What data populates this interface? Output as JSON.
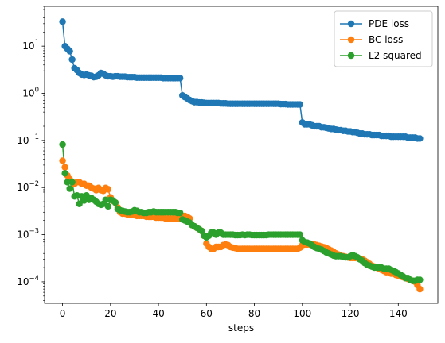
{
  "chart_data": {
    "type": "line",
    "title": "",
    "xlabel": "steps",
    "ylabel": "",
    "yscale": "log",
    "xlim": [
      -7.5,
      156.5
    ],
    "ylim": [
      3.5e-05,
      70
    ],
    "grid": false,
    "legend_position": "top-right",
    "x_ticks": [
      0,
      20,
      40,
      60,
      80,
      100,
      120,
      140
    ],
    "x_tick_labels": [
      "0",
      "20",
      "40",
      "60",
      "80",
      "100",
      "120",
      "140"
    ],
    "y_ticks": [
      {
        "value": 0.0001,
        "base": "10",
        "exp": "−4"
      },
      {
        "value": 0.001,
        "base": "10",
        "exp": "−3"
      },
      {
        "value": 0.01,
        "base": "10",
        "exp": "−2"
      },
      {
        "value": 0.1,
        "base": "10",
        "exp": "−1"
      },
      {
        "value": 1,
        "base": "10",
        "exp": "0"
      },
      {
        "value": 10,
        "base": "10",
        "exp": "1"
      }
    ],
    "x": [
      0,
      1,
      2,
      3,
      4,
      5,
      6,
      7,
      8,
      9,
      10,
      11,
      12,
      13,
      14,
      15,
      16,
      17,
      18,
      19,
      20,
      21,
      22,
      23,
      24,
      25,
      26,
      27,
      28,
      29,
      30,
      31,
      32,
      33,
      34,
      35,
      36,
      37,
      38,
      39,
      40,
      41,
      42,
      43,
      44,
      45,
      46,
      47,
      48,
      49,
      50,
      51,
      52,
      53,
      54,
      55,
      56,
      57,
      58,
      59,
      60,
      61,
      62,
      63,
      64,
      65,
      66,
      67,
      68,
      69,
      70,
      71,
      72,
      73,
      74,
      75,
      76,
      77,
      78,
      79,
      80,
      81,
      82,
      83,
      84,
      85,
      86,
      87,
      88,
      89,
      90,
      91,
      92,
      93,
      94,
      95,
      96,
      97,
      98,
      99,
      100,
      101,
      102,
      103,
      104,
      105,
      106,
      107,
      108,
      109,
      110,
      111,
      112,
      113,
      114,
      115,
      116,
      117,
      118,
      119,
      120,
      121,
      122,
      123,
      124,
      125,
      126,
      127,
      128,
      129,
      130,
      131,
      132,
      133,
      134,
      135,
      136,
      137,
      138,
      139,
      140,
      141,
      142,
      143,
      144,
      145,
      146,
      147,
      148,
      149
    ],
    "series": [
      {
        "name": "PDE loss",
        "color": "#1f77b4",
        "values": [
          33,
          10,
          8.8,
          7.8,
          5.2,
          3.4,
          3.1,
          2.7,
          2.5,
          2.45,
          2.5,
          2.4,
          2.35,
          2.2,
          2.25,
          2.4,
          2.7,
          2.6,
          2.4,
          2.3,
          2.3,
          2.25,
          2.3,
          2.3,
          2.25,
          2.25,
          2.25,
          2.2,
          2.2,
          2.2,
          2.2,
          2.15,
          2.15,
          2.15,
          2.15,
          2.15,
          2.15,
          2.15,
          2.15,
          2.15,
          2.15,
          2.15,
          2.1,
          2.1,
          2.1,
          2.1,
          2.1,
          2.1,
          2.1,
          2.1,
          0.9,
          0.83,
          0.78,
          0.72,
          0.68,
          0.65,
          0.65,
          0.64,
          0.64,
          0.63,
          0.62,
          0.62,
          0.62,
          0.62,
          0.62,
          0.62,
          0.61,
          0.61,
          0.61,
          0.6,
          0.6,
          0.6,
          0.6,
          0.6,
          0.6,
          0.6,
          0.6,
          0.6,
          0.6,
          0.6,
          0.6,
          0.6,
          0.6,
          0.6,
          0.6,
          0.6,
          0.6,
          0.6,
          0.6,
          0.6,
          0.6,
          0.59,
          0.59,
          0.59,
          0.58,
          0.58,
          0.58,
          0.58,
          0.58,
          0.58,
          0.24,
          0.22,
          0.22,
          0.22,
          0.21,
          0.2,
          0.2,
          0.2,
          0.19,
          0.19,
          0.185,
          0.18,
          0.175,
          0.175,
          0.17,
          0.165,
          0.165,
          0.16,
          0.16,
          0.155,
          0.155,
          0.15,
          0.15,
          0.145,
          0.14,
          0.14,
          0.135,
          0.135,
          0.135,
          0.13,
          0.13,
          0.13,
          0.13,
          0.125,
          0.125,
          0.125,
          0.125,
          0.12,
          0.12,
          0.12,
          0.12,
          0.12,
          0.12,
          0.12,
          0.115,
          0.115,
          0.115,
          0.115,
          0.11,
          0.11
        ]
      },
      {
        "name": "BC loss",
        "color": "#ff7f0e",
        "values": [
          0.037,
          0.027,
          0.018,
          0.015,
          0.013,
          0.012,
          0.013,
          0.013,
          0.012,
          0.012,
          0.011,
          0.011,
          0.01,
          0.0095,
          0.0088,
          0.0098,
          0.0088,
          0.0085,
          0.0098,
          0.0092,
          0.0062,
          0.0052,
          0.0048,
          0.0038,
          0.003,
          0.0028,
          0.0028,
          0.0027,
          0.0027,
          0.0026,
          0.0026,
          0.0025,
          0.0025,
          0.0025,
          0.0025,
          0.0024,
          0.0024,
          0.0024,
          0.0024,
          0.0023,
          0.0023,
          0.0023,
          0.0023,
          0.0022,
          0.0022,
          0.0022,
          0.0022,
          0.0022,
          0.0022,
          0.0022,
          0.0022,
          0.0025,
          0.0024,
          0.0022,
          0.0016,
          0.0015,
          0.0014,
          0.0013,
          0.0012,
          0.00095,
          0.00065,
          0.00055,
          0.0005,
          0.0005,
          0.00055,
          0.00055,
          0.00055,
          0.0006,
          0.00062,
          0.0006,
          0.00055,
          0.00053,
          0.00052,
          0.0005,
          0.0005,
          0.0005,
          0.0005,
          0.0005,
          0.0005,
          0.0005,
          0.0005,
          0.0005,
          0.0005,
          0.0005,
          0.0005,
          0.0005,
          0.0005,
          0.0005,
          0.0005,
          0.0005,
          0.0005,
          0.0005,
          0.0005,
          0.0005,
          0.0005,
          0.0005,
          0.0005,
          0.0005,
          0.0005,
          0.00053,
          0.0006,
          0.00062,
          0.00062,
          0.00062,
          0.00062,
          0.00062,
          0.0006,
          0.00058,
          0.00056,
          0.00054,
          0.00052,
          0.00049,
          0.00046,
          0.00043,
          0.0004,
          0.00038,
          0.00036,
          0.00035,
          0.00034,
          0.00033,
          0.00032,
          0.00032,
          0.00032,
          0.00032,
          0.00031,
          0.0003,
          0.00028,
          0.00026,
          0.00024,
          0.00022,
          0.00021,
          0.0002,
          0.00019,
          0.00018,
          0.00017,
          0.00016,
          0.00016,
          0.00015,
          0.00015,
          0.00014,
          0.000135,
          0.00013,
          0.000125,
          0.00012,
          0.000115,
          0.00011,
          0.000105,
          0.0001,
          8.5e-05,
          7e-05
        ]
      },
      {
        "name": "L2 squared",
        "color": "#2ca02c",
        "values": [
          0.082,
          0.02,
          0.013,
          0.0095,
          0.013,
          0.0065,
          0.0068,
          0.0045,
          0.0065,
          0.0053,
          0.0068,
          0.0055,
          0.006,
          0.0055,
          0.005,
          0.0045,
          0.0043,
          0.0045,
          0.0055,
          0.004,
          0.0055,
          0.0053,
          0.0048,
          0.0035,
          0.0033,
          0.0032,
          0.0031,
          0.003,
          0.003,
          0.0031,
          0.0033,
          0.0032,
          0.003,
          0.003,
          0.0029,
          0.0029,
          0.003,
          0.003,
          0.0031,
          0.003,
          0.003,
          0.003,
          0.003,
          0.003,
          0.003,
          0.003,
          0.003,
          0.003,
          0.0029,
          0.0029,
          0.0021,
          0.002,
          0.0019,
          0.0018,
          0.0016,
          0.0015,
          0.0014,
          0.0013,
          0.0012,
          0.00095,
          0.00088,
          0.00095,
          0.0011,
          0.0011,
          0.001,
          0.0011,
          0.0011,
          0.001,
          0.001,
          0.001,
          0.001,
          0.001,
          0.00098,
          0.00098,
          0.00098,
          0.001,
          0.00098,
          0.001,
          0.001,
          0.00098,
          0.00098,
          0.00098,
          0.00098,
          0.00098,
          0.00098,
          0.00098,
          0.001,
          0.001,
          0.001,
          0.001,
          0.001,
          0.001,
          0.001,
          0.001,
          0.001,
          0.001,
          0.001,
          0.001,
          0.001,
          0.001,
          0.00076,
          0.0007,
          0.00068,
          0.00065,
          0.0006,
          0.00055,
          0.00052,
          0.0005,
          0.00048,
          0.00045,
          0.00042,
          0.0004,
          0.00038,
          0.00036,
          0.00035,
          0.00035,
          0.00035,
          0.00034,
          0.00033,
          0.00033,
          0.00035,
          0.00037,
          0.00035,
          0.00033,
          0.0003,
          0.00028,
          0.00025,
          0.00023,
          0.00022,
          0.00021,
          0.0002,
          0.0002,
          0.0002,
          0.0002,
          0.00019,
          0.00019,
          0.00019,
          0.00018,
          0.00017,
          0.00016,
          0.00015,
          0.00014,
          0.00013,
          0.00012,
          0.00012,
          0.00011,
          0.000105,
          0.000105,
          0.00011,
          0.00011
        ]
      }
    ]
  }
}
